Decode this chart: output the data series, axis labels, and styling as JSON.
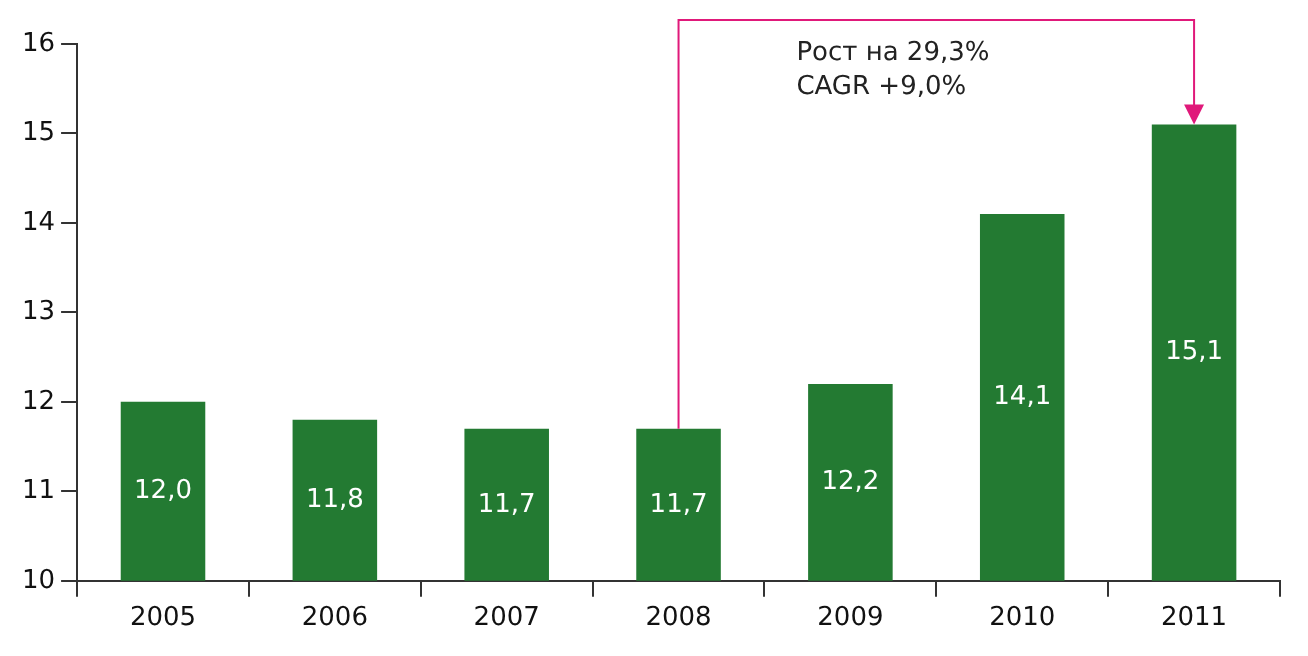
{
  "chart_data": {
    "type": "bar",
    "categories": [
      "2005",
      "2006",
      "2007",
      "2008",
      "2009",
      "2010",
      "2011"
    ],
    "values": [
      12.0,
      11.8,
      11.7,
      11.7,
      12.2,
      14.1,
      15.1
    ],
    "value_labels": [
      "12,0",
      "11,8",
      "11,7",
      "11,7",
      "12,2",
      "14,1",
      "15,1"
    ],
    "color": "#237a32",
    "ylim": [
      10,
      16
    ],
    "yticks": [
      10,
      11,
      12,
      13,
      14,
      15,
      16
    ],
    "annotations": [
      "Рост на 29,3%",
      "CAGR +9,0%"
    ]
  }
}
